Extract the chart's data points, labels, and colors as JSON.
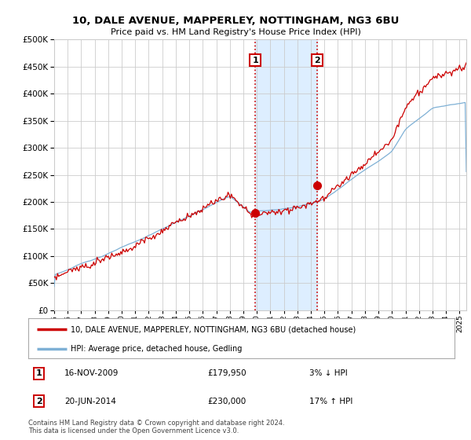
{
  "title": "10, DALE AVENUE, MAPPERLEY, NOTTINGHAM, NG3 6BU",
  "subtitle": "Price paid vs. HM Land Registry's House Price Index (HPI)",
  "ylim": [
    0,
    500000
  ],
  "yticks": [
    0,
    50000,
    100000,
    150000,
    200000,
    250000,
    300000,
    350000,
    400000,
    450000,
    500000
  ],
  "ytick_labels": [
    "£0",
    "£50K",
    "£100K",
    "£150K",
    "£200K",
    "£250K",
    "£300K",
    "£350K",
    "£400K",
    "£450K",
    "£500K"
  ],
  "transaction1_date": 2009.88,
  "transaction1_price": 179950,
  "transaction1_label": "16-NOV-2009",
  "transaction1_price_label": "£179,950",
  "transaction1_hpi_label": "3% ↓ HPI",
  "transaction2_date": 2014.47,
  "transaction2_price": 230000,
  "transaction2_label": "20-JUN-2014",
  "transaction2_price_label": "£230,000",
  "transaction2_hpi_label": "17% ↑ HPI",
  "red_line_color": "#cc0000",
  "blue_line_color": "#7eb0d5",
  "shade_color": "#ddeeff",
  "grid_color": "#cccccc",
  "background_color": "#ffffff",
  "legend1_label": "10, DALE AVENUE, MAPPERLEY, NOTTINGHAM, NG3 6BU (detached house)",
  "legend2_label": "HPI: Average price, detached house, Gedling",
  "footnote": "Contains HM Land Registry data © Crown copyright and database right 2024.\nThis data is licensed under the Open Government Licence v3.0.",
  "xlim_start": 1995,
  "xlim_end": 2025.5
}
